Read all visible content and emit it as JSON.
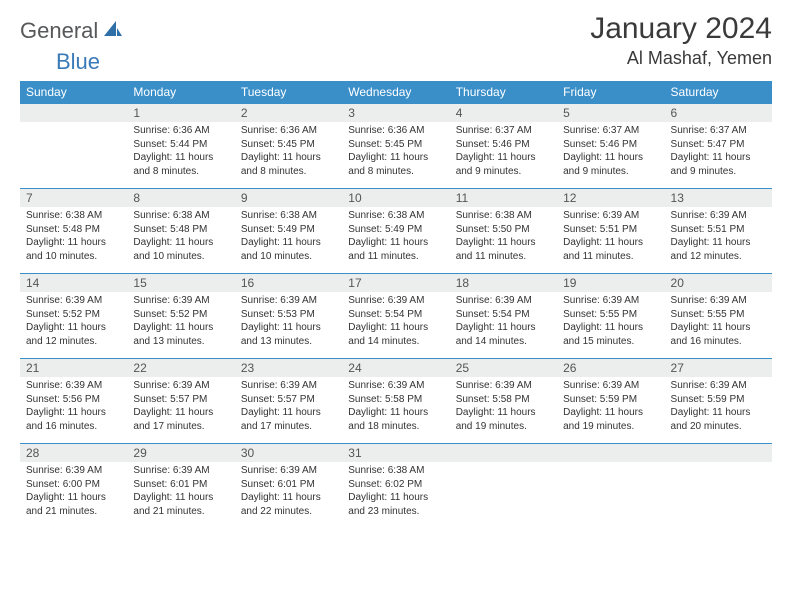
{
  "brand": {
    "part1": "General",
    "part2": "Blue",
    "color1": "#57585a",
    "color2": "#3a7ab8",
    "sail_color": "#2f6fa8"
  },
  "title": "January 2024",
  "location": "Al Mashaf, Yemen",
  "colors": {
    "header_bg": "#3a8fc9",
    "header_text": "#ffffff",
    "daynum_bg": "#eceded",
    "row_border": "#3a8fc9",
    "body_text": "#333333",
    "page_bg": "#ffffff"
  },
  "typography": {
    "title_fontsize": 30,
    "location_fontsize": 18,
    "header_fontsize": 12,
    "daynum_fontsize": 12,
    "cell_fontsize": 10
  },
  "weekdays": [
    "Sunday",
    "Monday",
    "Tuesday",
    "Wednesday",
    "Thursday",
    "Friday",
    "Saturday"
  ],
  "weeks": [
    [
      null,
      {
        "n": "1",
        "sr": "6:36 AM",
        "ss": "5:44 PM",
        "dl": "11 hours and 8 minutes."
      },
      {
        "n": "2",
        "sr": "6:36 AM",
        "ss": "5:45 PM",
        "dl": "11 hours and 8 minutes."
      },
      {
        "n": "3",
        "sr": "6:36 AM",
        "ss": "5:45 PM",
        "dl": "11 hours and 8 minutes."
      },
      {
        "n": "4",
        "sr": "6:37 AM",
        "ss": "5:46 PM",
        "dl": "11 hours and 9 minutes."
      },
      {
        "n": "5",
        "sr": "6:37 AM",
        "ss": "5:46 PM",
        "dl": "11 hours and 9 minutes."
      },
      {
        "n": "6",
        "sr": "6:37 AM",
        "ss": "5:47 PM",
        "dl": "11 hours and 9 minutes."
      }
    ],
    [
      {
        "n": "7",
        "sr": "6:38 AM",
        "ss": "5:48 PM",
        "dl": "11 hours and 10 minutes."
      },
      {
        "n": "8",
        "sr": "6:38 AM",
        "ss": "5:48 PM",
        "dl": "11 hours and 10 minutes."
      },
      {
        "n": "9",
        "sr": "6:38 AM",
        "ss": "5:49 PM",
        "dl": "11 hours and 10 minutes."
      },
      {
        "n": "10",
        "sr": "6:38 AM",
        "ss": "5:49 PM",
        "dl": "11 hours and 11 minutes."
      },
      {
        "n": "11",
        "sr": "6:38 AM",
        "ss": "5:50 PM",
        "dl": "11 hours and 11 minutes."
      },
      {
        "n": "12",
        "sr": "6:39 AM",
        "ss": "5:51 PM",
        "dl": "11 hours and 11 minutes."
      },
      {
        "n": "13",
        "sr": "6:39 AM",
        "ss": "5:51 PM",
        "dl": "11 hours and 12 minutes."
      }
    ],
    [
      {
        "n": "14",
        "sr": "6:39 AM",
        "ss": "5:52 PM",
        "dl": "11 hours and 12 minutes."
      },
      {
        "n": "15",
        "sr": "6:39 AM",
        "ss": "5:52 PM",
        "dl": "11 hours and 13 minutes."
      },
      {
        "n": "16",
        "sr": "6:39 AM",
        "ss": "5:53 PM",
        "dl": "11 hours and 13 minutes."
      },
      {
        "n": "17",
        "sr": "6:39 AM",
        "ss": "5:54 PM",
        "dl": "11 hours and 14 minutes."
      },
      {
        "n": "18",
        "sr": "6:39 AM",
        "ss": "5:54 PM",
        "dl": "11 hours and 14 minutes."
      },
      {
        "n": "19",
        "sr": "6:39 AM",
        "ss": "5:55 PM",
        "dl": "11 hours and 15 minutes."
      },
      {
        "n": "20",
        "sr": "6:39 AM",
        "ss": "5:55 PM",
        "dl": "11 hours and 16 minutes."
      }
    ],
    [
      {
        "n": "21",
        "sr": "6:39 AM",
        "ss": "5:56 PM",
        "dl": "11 hours and 16 minutes."
      },
      {
        "n": "22",
        "sr": "6:39 AM",
        "ss": "5:57 PM",
        "dl": "11 hours and 17 minutes."
      },
      {
        "n": "23",
        "sr": "6:39 AM",
        "ss": "5:57 PM",
        "dl": "11 hours and 17 minutes."
      },
      {
        "n": "24",
        "sr": "6:39 AM",
        "ss": "5:58 PM",
        "dl": "11 hours and 18 minutes."
      },
      {
        "n": "25",
        "sr": "6:39 AM",
        "ss": "5:58 PM",
        "dl": "11 hours and 19 minutes."
      },
      {
        "n": "26",
        "sr": "6:39 AM",
        "ss": "5:59 PM",
        "dl": "11 hours and 19 minutes."
      },
      {
        "n": "27",
        "sr": "6:39 AM",
        "ss": "5:59 PM",
        "dl": "11 hours and 20 minutes."
      }
    ],
    [
      {
        "n": "28",
        "sr": "6:39 AM",
        "ss": "6:00 PM",
        "dl": "11 hours and 21 minutes."
      },
      {
        "n": "29",
        "sr": "6:39 AM",
        "ss": "6:01 PM",
        "dl": "11 hours and 21 minutes."
      },
      {
        "n": "30",
        "sr": "6:39 AM",
        "ss": "6:01 PM",
        "dl": "11 hours and 22 minutes."
      },
      {
        "n": "31",
        "sr": "6:38 AM",
        "ss": "6:02 PM",
        "dl": "11 hours and 23 minutes."
      },
      null,
      null,
      null
    ]
  ],
  "labels": {
    "sunrise": "Sunrise:",
    "sunset": "Sunset:",
    "daylight": "Daylight:"
  }
}
